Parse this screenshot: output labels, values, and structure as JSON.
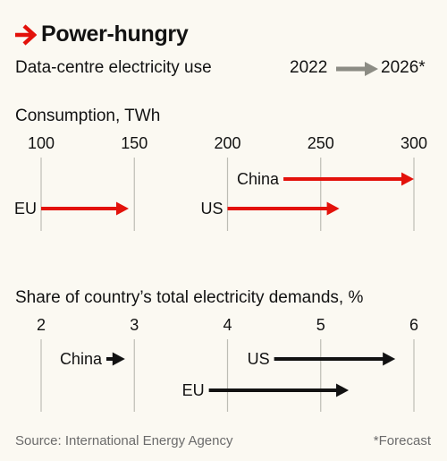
{
  "title": "Power-hungry",
  "subtitle": "Data-centre electricity use",
  "legend": {
    "from_label": "2022",
    "to_label": "2026*"
  },
  "source": "Source: International Energy Agency",
  "footnote": "*Forecast",
  "colors": {
    "background": "#fbf9f2",
    "red": "#e3120b",
    "black": "#121212",
    "legend_arrow": "#8c8c84",
    "gridline": "#bdbdb5",
    "source_text": "#6b6b6b"
  },
  "chart_data": [
    {
      "type": "arrow",
      "title": "Consumption, TWh",
      "xlim": [
        100,
        300
      ],
      "ticks": [
        100,
        150,
        200,
        250,
        300
      ],
      "series": [
        {
          "category": "China",
          "from": 230,
          "to": 300
        },
        {
          "category": "US",
          "from": 200,
          "to": 260
        },
        {
          "category": "EU",
          "from": 100,
          "to": 147
        }
      ]
    },
    {
      "type": "arrow",
      "title": "Share of country’s total electricity demands, %",
      "xlim": [
        2,
        6
      ],
      "ticks": [
        2,
        3,
        4,
        5,
        6
      ],
      "series": [
        {
          "category": "US",
          "from": 4.5,
          "to": 5.8
        },
        {
          "category": "China",
          "from": 2.7,
          "to": 2.9
        },
        {
          "category": "EU",
          "from": 3.8,
          "to": 5.3
        }
      ]
    }
  ]
}
